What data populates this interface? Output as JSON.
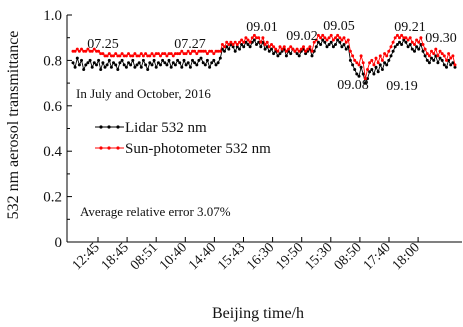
{
  "chart_data": {
    "type": "scatter",
    "xlabel": "Beijing time/h",
    "ylabel": "532 nm aerosol transmittance",
    "ylim": [
      0,
      1.0
    ],
    "y_ticks": [
      "0",
      "0.2",
      "0.4",
      "0.6",
      "0.8",
      "1.0"
    ],
    "x_ticks": [
      "12:45",
      "18:45",
      "08:51",
      "10:40",
      "14:40",
      "15:43",
      "16:30",
      "19:50",
      "15:30",
      "08:50",
      "17:40",
      "18:00"
    ],
    "grid": false,
    "legend_position": "center-left",
    "note_top": "In July and October, 2016",
    "note_bottom": "Average relative error 3.07%",
    "date_labels": [
      "07.25",
      "07.27",
      "09.01",
      "09.02",
      "09.05",
      "09.08",
      "09.19",
      "09.21",
      "09.30"
    ],
    "series": [
      {
        "name": "Lidar 532 nm",
        "color": "#000000",
        "marker": "dot-line",
        "values": [
          0.79,
          0.77,
          0.81,
          0.78,
          0.8,
          0.76,
          0.78,
          0.79,
          0.8,
          0.77,
          0.79,
          0.78,
          0.8,
          0.76,
          0.79,
          0.77,
          0.78,
          0.8,
          0.77,
          0.79,
          0.78,
          0.76,
          0.79,
          0.8,
          0.78,
          0.77,
          0.79,
          0.78,
          0.8,
          0.77,
          0.78,
          0.79,
          0.77,
          0.8,
          0.78,
          0.76,
          0.79,
          0.78,
          0.8,
          0.77,
          0.79,
          0.78,
          0.8,
          0.79,
          0.78,
          0.8,
          0.77,
          0.79,
          0.78,
          0.8,
          0.79,
          0.77,
          0.8,
          0.78,
          0.79,
          0.77,
          0.8,
          0.79,
          0.78,
          0.8,
          0.81,
          0.79,
          0.78,
          0.8,
          0.77,
          0.79,
          0.8,
          0.78,
          0.79,
          0.81,
          0.85,
          0.84,
          0.86,
          0.85,
          0.87,
          0.86,
          0.84,
          0.86,
          0.85,
          0.87,
          0.86,
          0.88,
          0.87,
          0.86,
          0.88,
          0.89,
          0.87,
          0.88,
          0.86,
          0.88,
          0.85,
          0.86,
          0.84,
          0.85,
          0.83,
          0.84,
          0.82,
          0.83,
          0.84,
          0.85,
          0.82,
          0.84,
          0.83,
          0.85,
          0.84,
          0.83,
          0.82,
          0.84,
          0.85,
          0.83,
          0.84,
          0.85,
          0.82,
          0.84,
          0.86,
          0.88,
          0.87,
          0.89,
          0.88,
          0.86,
          0.87,
          0.88,
          0.86,
          0.87,
          0.89,
          0.88,
          0.86,
          0.87,
          0.85,
          0.86,
          0.8,
          0.78,
          0.76,
          0.74,
          0.73,
          0.77,
          0.74,
          0.7,
          0.72,
          0.75,
          0.76,
          0.74,
          0.77,
          0.75,
          0.78,
          0.76,
          0.79,
          0.78,
          0.8,
          0.82,
          0.84,
          0.86,
          0.87,
          0.88,
          0.87,
          0.89,
          0.88,
          0.86,
          0.87,
          0.85,
          0.84,
          0.86,
          0.85,
          0.87,
          0.84,
          0.82,
          0.8,
          0.79,
          0.81,
          0.8,
          0.82,
          0.79,
          0.81,
          0.8,
          0.78,
          0.77,
          0.8,
          0.78,
          0.79,
          0.77
        ]
      },
      {
        "name": "Sun-photometer 532 nm",
        "color": "#ff0000",
        "marker": "dot-line",
        "values": [
          0.84,
          0.84,
          0.85,
          0.84,
          0.85,
          0.84,
          0.84,
          0.85,
          0.84,
          0.84,
          0.85,
          0.84,
          0.84,
          0.83,
          0.83,
          0.82,
          0.82,
          0.83,
          0.82,
          0.82,
          0.83,
          0.82,
          0.82,
          0.83,
          0.82,
          0.82,
          0.83,
          0.82,
          0.82,
          0.83,
          0.82,
          0.82,
          0.83,
          0.82,
          0.83,
          0.82,
          0.82,
          0.83,
          0.82,
          0.83,
          0.83,
          0.82,
          0.83,
          0.83,
          0.82,
          0.83,
          0.83,
          0.82,
          0.83,
          0.83,
          0.83,
          0.84,
          0.83,
          0.83,
          0.84,
          0.83,
          0.84,
          0.84,
          0.83,
          0.84,
          0.84,
          0.84,
          0.84,
          0.83,
          0.84,
          0.84,
          0.83,
          0.84,
          0.84,
          0.84,
          0.87,
          0.86,
          0.88,
          0.87,
          0.88,
          0.87,
          0.88,
          0.87,
          0.88,
          0.89,
          0.88,
          0.9,
          0.89,
          0.88,
          0.9,
          0.91,
          0.9,
          0.9,
          0.88,
          0.9,
          0.87,
          0.88,
          0.86,
          0.87,
          0.86,
          0.85,
          0.84,
          0.86,
          0.85,
          0.86,
          0.84,
          0.85,
          0.86,
          0.85,
          0.84,
          0.85,
          0.84,
          0.85,
          0.86,
          0.84,
          0.85,
          0.86,
          0.84,
          0.88,
          0.89,
          0.91,
          0.9,
          0.91,
          0.9,
          0.89,
          0.9,
          0.91,
          0.89,
          0.9,
          0.91,
          0.9,
          0.89,
          0.9,
          0.88,
          0.89,
          0.84,
          0.82,
          0.8,
          0.79,
          0.78,
          0.82,
          0.79,
          0.72,
          0.76,
          0.79,
          0.8,
          0.78,
          0.81,
          0.79,
          0.82,
          0.8,
          0.83,
          0.82,
          0.84,
          0.86,
          0.88,
          0.9,
          0.91,
          0.9,
          0.91,
          0.9,
          0.9,
          0.89,
          0.9,
          0.88,
          0.87,
          0.89,
          0.88,
          0.9,
          0.87,
          0.85,
          0.83,
          0.82,
          0.84,
          0.83,
          0.85,
          0.82,
          0.84,
          0.83,
          0.82,
          0.8,
          0.83,
          0.81,
          0.82,
          0.78
        ]
      }
    ]
  }
}
